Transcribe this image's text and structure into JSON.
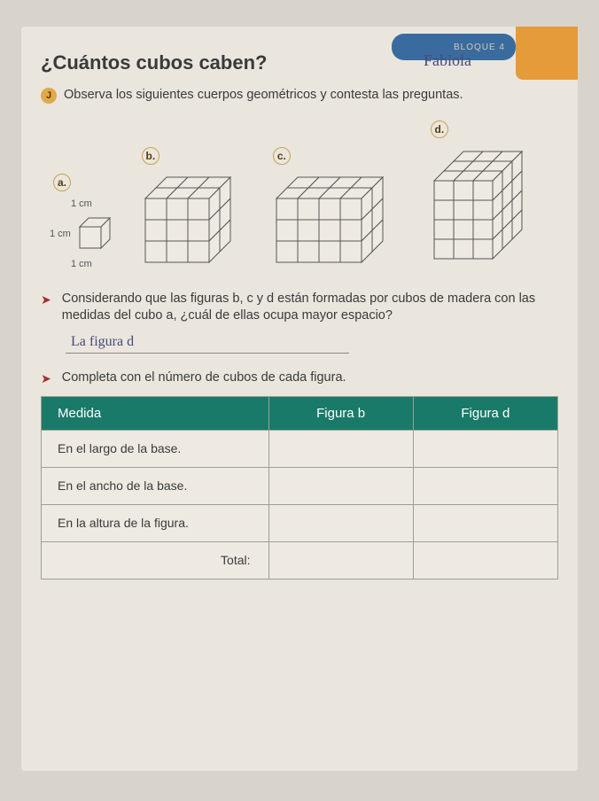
{
  "header": {
    "tab_text": "BLOQUE 4",
    "tab_bg": "#3a6b9e",
    "corner_bg": "#e59b3a"
  },
  "title": "¿Cuántos cubos caben?",
  "handwritten_name": "Fabiola",
  "instructions": {
    "observe": "Observa los siguientes cuerpos geométricos y contesta las preguntas.",
    "consider": "Considerando que las figuras b, c y d están formadas por cubos de madera con las medidas del cubo a, ¿cuál de ellas ocupa mayor espacio?",
    "complete": "Completa con el número de cubos de cada figura."
  },
  "handwritten_answer": "La figura d",
  "figures": {
    "a": {
      "label": "a.",
      "dim_top": "1 cm",
      "dim_left": "1 cm",
      "dim_bottom": "1 cm",
      "w": 1,
      "h": 1,
      "d": 1
    },
    "b": {
      "label": "b.",
      "w": 3,
      "h": 3,
      "d": 2
    },
    "c": {
      "label": "c.",
      "w": 4,
      "h": 3,
      "d": 2
    },
    "d": {
      "label": "d.",
      "w": 3,
      "h": 4,
      "d": 3
    }
  },
  "table": {
    "headers": [
      "Medida",
      "Figura b",
      "Figura d"
    ],
    "rows": [
      "En el largo de la base.",
      "En el ancho de la base.",
      "En la altura de la figura.",
      "Total:"
    ],
    "header_bg": "#1a7a6a",
    "header_color": "#ffffff",
    "border_color": "#9aa090"
  },
  "colors": {
    "page_bg": "#eae6de",
    "body_bg": "#d8d4cc",
    "text": "#3a3a3a",
    "bullet_bg": "#e0a94a",
    "cube_stroke": "#555555",
    "cube_fill": "#eeeae2"
  }
}
